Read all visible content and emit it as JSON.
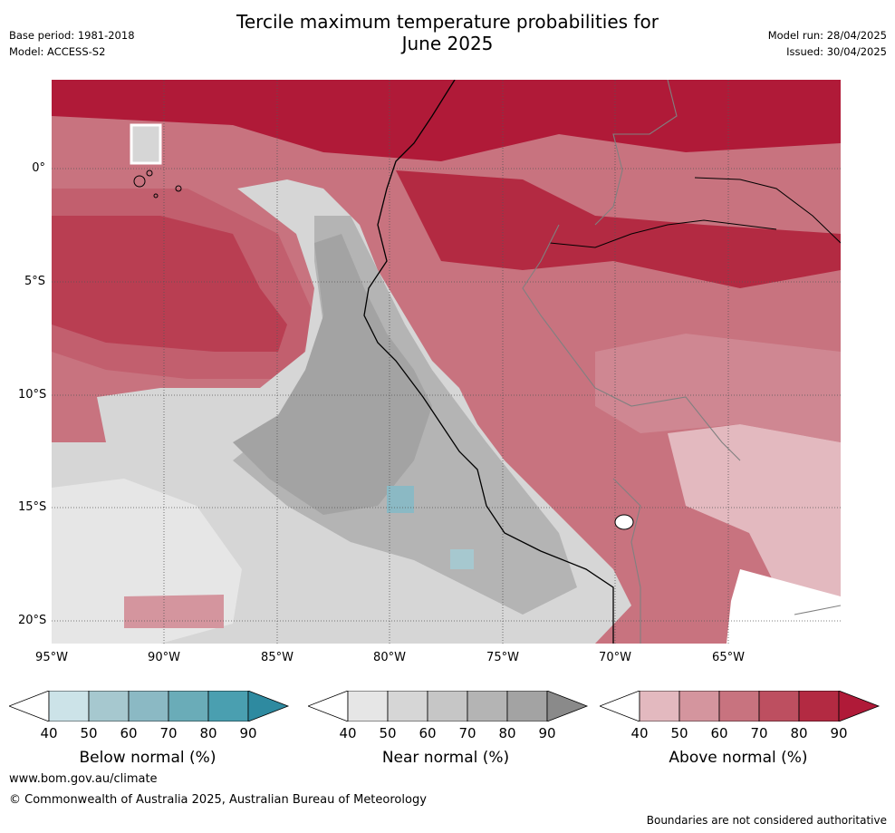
{
  "title_line1": "Tercile maximum temperature probabilities for",
  "title_line2": "June 2025",
  "base_period": "Base period: 1981-2018",
  "model": "Model: ACCESS-S2",
  "model_run": "Model run: 28/04/2025",
  "issued": "Issued: 30/04/2025",
  "lat_labels": [
    "0°",
    "5°S",
    "10°S",
    "15°S",
    "20°S"
  ],
  "lon_labels": [
    "95°W",
    "90°W",
    "85°W",
    "80°W",
    "75°W",
    "70°W",
    "65°W"
  ],
  "colorbars": [
    {
      "name": "Below normal (%)",
      "ticks": [
        "40",
        "50",
        "60",
        "70",
        "80",
        "90"
      ],
      "colors": [
        "#cce3e8",
        "#a6c8cf",
        "#8bb9c4",
        "#6aacb8",
        "#4a9fb0",
        "#2e8aa0"
      ]
    },
    {
      "name": "Near normal (%)",
      "ticks": [
        "40",
        "50",
        "60",
        "70",
        "80",
        "90"
      ],
      "colors": [
        "#e6e6e6",
        "#d6d6d6",
        "#c6c6c6",
        "#b4b4b4",
        "#a3a3a3",
        "#8a8a8a"
      ]
    },
    {
      "name": "Above normal (%)",
      "ticks": [
        "40",
        "50",
        "60",
        "70",
        "80",
        "90"
      ],
      "colors": [
        "#e3b9bf",
        "#d4959e",
        "#c8737f",
        "#bd4f60",
        "#b32a42",
        "#b01a38"
      ]
    }
  ],
  "website": "www.bom.gov.au/climate",
  "copyright": "© Commonwealth of Australia 2025, Australian Bureau of Meteorology",
  "disclaimer": "Boundaries are not considered authoritative"
}
